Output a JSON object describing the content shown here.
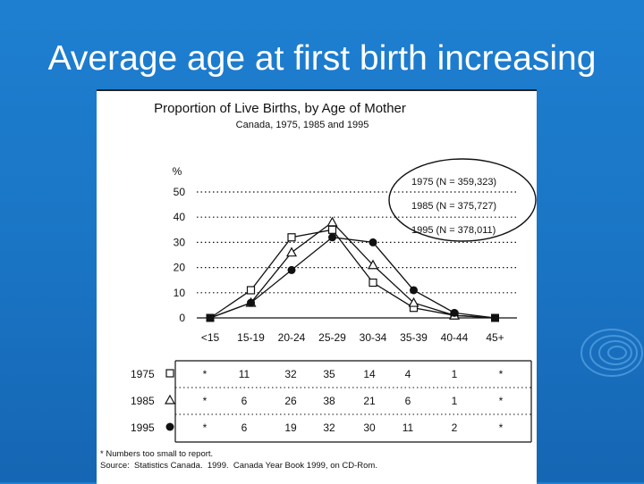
{
  "slide": {
    "title": "Average age at first birth increasing"
  },
  "colors": {
    "background": "#1a74c4",
    "card": "#ffffff",
    "ink": "#111111"
  },
  "chart_data": {
    "type": "line",
    "title": "Proportion of Live Births, by Age of Mother",
    "subtitle": "Canada, 1975, 1985 and 1995",
    "ylabel": "%",
    "xlabel": "",
    "ylim": [
      0,
      50
    ],
    "yticks": [
      "0",
      "10",
      "20",
      "30",
      "40",
      "50"
    ],
    "categories": [
      "<15",
      "15-19",
      "20-24",
      "25-29",
      "30-34",
      "35-39",
      "40-44",
      "45+"
    ],
    "grid": true,
    "legend_position": "top-right",
    "series": [
      {
        "name": "1975 (N = 359,323)",
        "table_label": "1975",
        "marker": "square-open",
        "values": [
          0,
          11,
          32,
          35,
          14,
          4,
          1,
          0
        ],
        "table": [
          "*",
          "11",
          "32",
          "35",
          "14",
          "4",
          "1",
          "*"
        ]
      },
      {
        "name": "1985 (N = 375,727)",
        "table_label": "1985",
        "marker": "triangle-open",
        "values": [
          0,
          6,
          26,
          38,
          21,
          6,
          1,
          0
        ],
        "table": [
          "*",
          "6",
          "26",
          "38",
          "21",
          "6",
          "1",
          "*"
        ]
      },
      {
        "name": "1995 (N = 378,011)",
        "table_label": "1995",
        "marker": "circle-filled",
        "values": [
          0,
          6,
          19,
          32,
          30,
          11,
          2,
          0
        ],
        "table": [
          "*",
          "6",
          "19",
          "32",
          "30",
          "11",
          "2",
          "*"
        ]
      }
    ],
    "footnote": "* Numbers too small to report.",
    "source": "Source:  Statistics Canada.  1999.  Canada Year Book 1999, on CD-Rom."
  }
}
